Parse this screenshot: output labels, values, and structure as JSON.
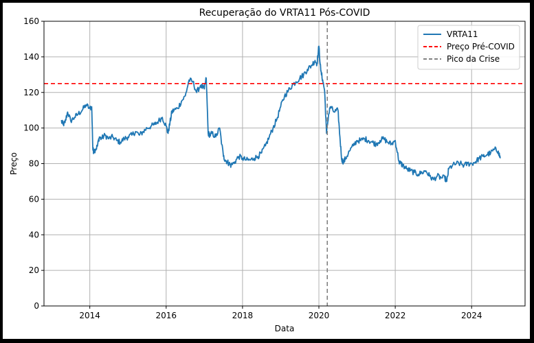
{
  "chart_data": {
    "type": "line",
    "title": "Recuperação do VRTA11 Pós-COVID",
    "xlabel": "Data",
    "ylabel": "Preço",
    "xlim": [
      2012.8,
      2025.4
    ],
    "ylim": [
      0,
      160
    ],
    "x_ticks": [
      2014,
      2016,
      2018,
      2020,
      2022,
      2024
    ],
    "y_ticks": [
      0,
      20,
      40,
      60,
      80,
      100,
      120,
      140,
      160
    ],
    "grid": true,
    "legend_position": "top-right",
    "series": [
      {
        "name": "VRTA11",
        "color": "#1f77b4",
        "style": "solid",
        "x": [
          2013.25,
          2013.3,
          2013.35,
          2013.42,
          2013.5,
          2013.6,
          2013.7,
          2013.8,
          2013.9,
          2014.0,
          2014.05,
          2014.08,
          2014.1,
          2014.15,
          2014.2,
          2014.25,
          2014.3,
          2014.4,
          2014.5,
          2014.6,
          2014.7,
          2014.8,
          2014.9,
          2015.0,
          2015.1,
          2015.2,
          2015.3,
          2015.4,
          2015.5,
          2015.6,
          2015.7,
          2015.8,
          2015.9,
          2016.0,
          2016.05,
          2016.1,
          2016.15,
          2016.2,
          2016.3,
          2016.4,
          2016.5,
          2016.6,
          2016.7,
          2016.8,
          2016.9,
          2017.0,
          2017.05,
          2017.1,
          2017.15,
          2017.2,
          2017.3,
          2017.4,
          2017.5,
          2017.55,
          2017.6,
          2017.65,
          2017.7,
          2017.8,
          2017.9,
          2018.0,
          2018.1,
          2018.2,
          2018.3,
          2018.4,
          2018.5,
          2018.6,
          2018.7,
          2018.8,
          2018.9,
          2019.0,
          2019.1,
          2019.2,
          2019.3,
          2019.4,
          2019.5,
          2019.6,
          2019.7,
          2019.8,
          2019.9,
          2019.95,
          2020.0,
          2020.05,
          2020.1,
          2020.15,
          2020.2,
          2020.25,
          2020.3,
          2020.4,
          2020.5,
          2020.55,
          2020.6,
          2020.65,
          2020.7,
          2020.8,
          2020.9,
          2021.0,
          2021.1,
          2021.2,
          2021.3,
          2021.4,
          2021.5,
          2021.6,
          2021.7,
          2021.8,
          2021.9,
          2022.0,
          2022.1,
          2022.15,
          2022.2,
          2022.3,
          2022.4,
          2022.5,
          2022.6,
          2022.7,
          2022.8,
          2022.9,
          2023.0,
          2023.1,
          2023.2,
          2023.3,
          2023.35,
          2023.4,
          2023.5,
          2023.6,
          2023.7,
          2023.8,
          2023.9,
          2024.0,
          2024.1,
          2024.2,
          2024.3,
          2024.4,
          2024.5,
          2024.6,
          2024.7,
          2024.75
        ],
        "y": [
          104,
          102,
          103,
          109,
          104,
          106,
          108,
          110,
          113,
          111,
          112,
          88,
          87,
          88,
          90,
          95,
          94,
          96,
          94,
          95,
          93,
          92,
          94,
          95,
          96,
          98,
          96,
          98,
          100,
          101,
          102,
          104,
          106,
          101,
          97,
          103,
          109,
          110,
          111,
          115,
          118,
          127,
          126,
          120,
          124,
          122,
          128,
          97,
          96,
          97,
          95,
          100,
          84,
          82,
          81,
          80,
          79,
          81,
          84,
          83,
          82,
          82,
          83,
          84,
          86,
          90,
          95,
          100,
          105,
          112,
          118,
          121,
          124,
          126,
          128,
          130,
          133,
          135,
          138,
          136,
          146,
          132,
          127,
          121,
          97,
          107,
          112,
          109,
          110,
          95,
          82,
          81,
          83,
          87,
          90,
          93,
          93,
          94,
          93,
          92,
          91,
          93,
          94,
          92,
          91,
          93,
          81,
          80,
          79,
          77,
          76,
          75,
          74,
          75,
          76,
          73,
          71,
          73,
          72,
          72,
          70,
          77,
          79,
          80,
          80,
          79,
          80,
          80,
          81,
          83,
          84,
          85,
          86,
          88,
          87,
          83
        ]
      },
      {
        "name": "Preço Pré-COVID",
        "color": "#ff0000",
        "style": "dashed",
        "y_constant": 125
      },
      {
        "name": "Pico da Crise",
        "color": "#808080",
        "style": "dashed",
        "x_constant": 2020.22
      }
    ]
  }
}
